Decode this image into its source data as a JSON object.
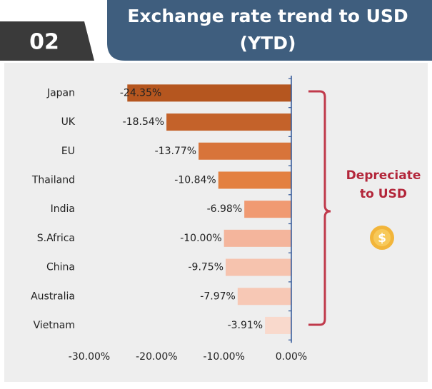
{
  "chart_data": {
    "type": "barh",
    "badge": "02",
    "title_lines": [
      "Exchange rate trend to USD",
      "(YTD)"
    ],
    "categories": [
      "Japan",
      "UK",
      "EU",
      "Thailand",
      "India",
      "S.Africa",
      "China",
      "Australia",
      "Vietnam"
    ],
    "values": [
      -24.35,
      -18.54,
      -13.77,
      -10.84,
      -6.98,
      -10.0,
      -9.75,
      -7.97,
      -3.91
    ],
    "value_labels": [
      "-24.35%",
      "-18.54%",
      "-13.77%",
      "-10.84%",
      "-6.98%",
      "-10.00%",
      "-9.75%",
      "-7.97%",
      "-3.91%"
    ],
    "colors": [
      "#b5561f",
      "#c4622a",
      "#d8743a",
      "#e38040",
      "#f09a72",
      "#f4b59c",
      "#f6c3ae",
      "#f7c8b5",
      "#f9d9cc"
    ],
    "xlim": [
      -30,
      0
    ],
    "xticks": [
      {
        "value": -30,
        "label": "-30.00%"
      },
      {
        "value": -20,
        "label": "-20.00%"
      },
      {
        "value": -10,
        "label": "-10.00%"
      },
      {
        "value": 0,
        "label": "0.00%"
      }
    ],
    "annotation_lines": [
      "Depreciate",
      "to USD"
    ],
    "icon_text": "$"
  }
}
